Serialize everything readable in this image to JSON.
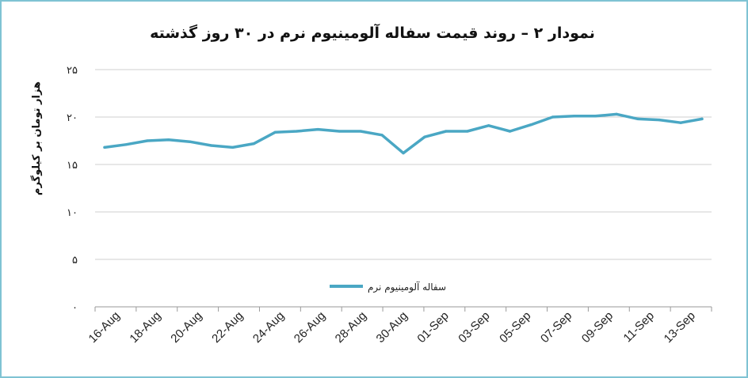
{
  "chart_data": {
    "type": "line",
    "title": "نمودار ۲ – روند قیمت سفاله آلومینیوم نرم در ۳۰ روز گذشته",
    "ylabel": "هزار تومان بر کیلوگرم",
    "xlabel": "",
    "ylim": [
      0,
      25
    ],
    "yticks": [
      {
        "value": 0,
        "label": "۰"
      },
      {
        "value": 5,
        "label": "۵"
      },
      {
        "value": 10,
        "label": "۱۰"
      },
      {
        "value": 15,
        "label": "۱۵"
      },
      {
        "value": 20,
        "label": "۲۰"
      },
      {
        "value": 25,
        "label": "۲۵"
      }
    ],
    "xtick_labels": [
      "16-Aug",
      "18-Aug",
      "20-Aug",
      "22-Aug",
      "24-Aug",
      "26-Aug",
      "28-Aug",
      "30-Aug",
      "01-Sep",
      "03-Sep",
      "05-Sep",
      "07-Sep",
      "09-Sep",
      "11-Sep",
      "13-Sep"
    ],
    "grid": true,
    "legend_position": "center",
    "color": "#4aa7c4",
    "series": [
      {
        "name": "سفاله آلومینیوم نرم",
        "values": [
          16.8,
          17.1,
          17.5,
          17.6,
          17.4,
          17.0,
          16.8,
          17.2,
          18.4,
          18.5,
          18.7,
          18.5,
          18.5,
          18.1,
          16.2,
          17.9,
          18.5,
          18.5,
          19.1,
          18.5,
          19.2,
          20.0,
          20.1,
          20.1,
          20.3,
          19.8,
          19.7,
          19.4,
          19.8
        ]
      }
    ]
  }
}
